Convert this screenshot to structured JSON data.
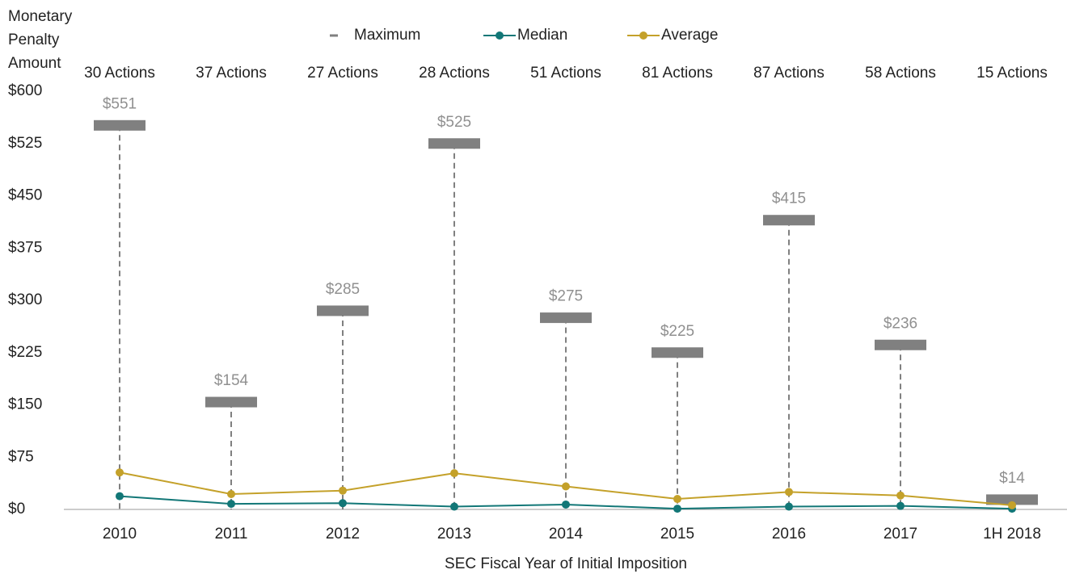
{
  "chart_data": {
    "type": "line",
    "y_label": "Monetary Penalty Amount",
    "x_label": "SEC Fiscal Year of Initial Imposition",
    "categories": [
      "2010",
      "2011",
      "2012",
      "2013",
      "2014",
      "2015",
      "2016",
      "2017",
      "1H 2018"
    ],
    "annotations": [
      "30 Actions",
      "37 Actions",
      "27 Actions",
      "28 Actions",
      "51 Actions",
      "81 Actions",
      "87 Actions",
      "58 Actions",
      "15 Actions"
    ],
    "series": [
      {
        "name": "Maximum",
        "type": "bar",
        "color": "#808080",
        "values": [
          551,
          154,
          285,
          525,
          275,
          225,
          415,
          236,
          14
        ],
        "value_labels": [
          "$551",
          "$154",
          "$285",
          "$525",
          "$275",
          "$225",
          "$415",
          "$236",
          "$14"
        ]
      },
      {
        "name": "Median",
        "type": "line",
        "color": "#127777",
        "values": [
          19,
          8,
          9,
          4,
          7,
          1,
          4,
          5,
          1
        ]
      },
      {
        "name": "Average",
        "type": "line",
        "color": "#c4a12a",
        "values": [
          53,
          22,
          27,
          52,
          33,
          15,
          25,
          20,
          6
        ]
      }
    ],
    "ylim": [
      0,
      600
    ],
    "yticks": [
      {
        "value": 0,
        "label": "$0"
      },
      {
        "value": 75,
        "label": "$75"
      },
      {
        "value": 150,
        "label": "$150"
      },
      {
        "value": 225,
        "label": "$225"
      },
      {
        "value": 300,
        "label": "$300"
      },
      {
        "value": 375,
        "label": "$375"
      },
      {
        "value": 450,
        "label": "$450"
      },
      {
        "value": 525,
        "label": "$525"
      },
      {
        "value": 600,
        "label": "$600"
      }
    ]
  }
}
